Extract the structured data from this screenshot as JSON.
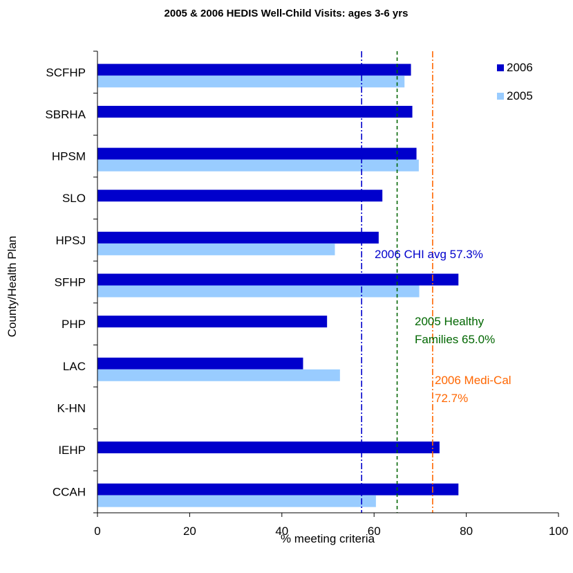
{
  "chart_data": {
    "type": "bar",
    "orientation": "horizontal",
    "title": "2005 & 2006 HEDIS Well-Child Visits: ages 3-6 yrs",
    "xlabel": "% meeting criteria",
    "ylabel": "County/Health Plan",
    "xlim": [
      0,
      100
    ],
    "xticks": [
      "0",
      "20",
      "40",
      "60",
      "80",
      "100"
    ],
    "grid": false,
    "legend_position": "top-right",
    "categories": [
      "SCFHP",
      "SBRHA",
      "HPSM",
      "SLO",
      "HPSJ",
      "SFHP",
      "PHP",
      "LAC",
      "K-HN",
      "IEHP",
      "CCAH"
    ],
    "series": [
      {
        "name": "2006",
        "color": "#0000CC",
        "values": [
          68.0,
          68.3,
          69.2,
          61.8,
          61.0,
          78.3,
          49.8,
          44.6,
          null,
          74.2,
          78.3
        ]
      },
      {
        "name": "2005",
        "color": "#99CCFF",
        "values": [
          66.6,
          null,
          69.7,
          null,
          51.5,
          69.8,
          null,
          52.6,
          null,
          null,
          60.4
        ]
      }
    ],
    "reference_lines": [
      {
        "value": 57.3,
        "color": "#0000CC",
        "style": "dash-dot",
        "label": [
          "2006 CHI avg 57.3%"
        ]
      },
      {
        "value": 65.0,
        "color": "#006600",
        "style": "dashed",
        "label": [
          "2005 Healthy",
          "Families 65.0%"
        ]
      },
      {
        "value": 72.7,
        "color": "#FF6600",
        "style": "dash-dot",
        "label": [
          "2006 Medi-Cal",
          "72.7%"
        ]
      }
    ]
  }
}
